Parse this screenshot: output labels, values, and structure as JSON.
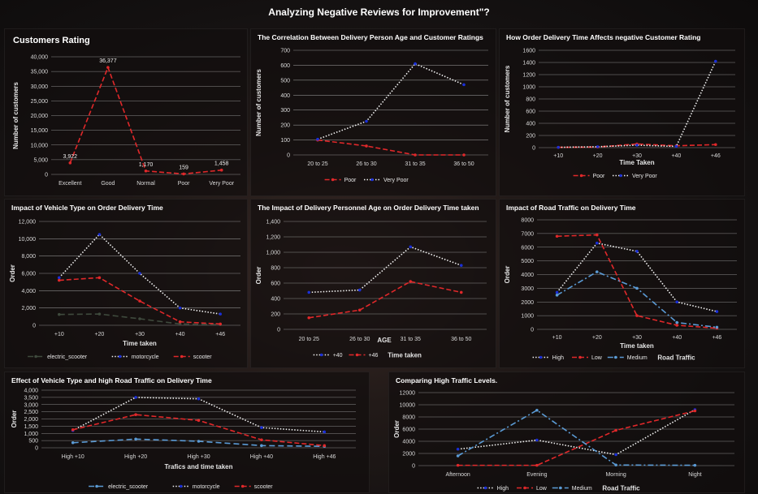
{
  "dashboard_title": "Analyzing Negative Reviews for Improvement\"?",
  "colors": {
    "red": "#e0282a",
    "white": "#f2f2f2",
    "blue": "#5b9bd5",
    "darkgreen": "#3f4a3d",
    "navy": "#1a2fd8"
  },
  "charts": [
    {
      "id": "c1",
      "type": "line",
      "title": "Customers Rating",
      "ylabel": "Number of customers",
      "xlabel": "",
      "categories": [
        "Excellent",
        "Good",
        "Normal",
        "Poor",
        "Very Poor"
      ],
      "ylim": [
        0,
        40000
      ],
      "yticks": [
        "0",
        "5,000",
        "10,000",
        "15,000",
        "20,000",
        "25,000",
        "30,000",
        "35,000",
        "40,000"
      ],
      "series": [
        {
          "values": [
            3922,
            36377,
            1170,
            159,
            1458
          ],
          "color": "#e0282a",
          "dash": "6,3",
          "marker_color": "#e0282a",
          "labels": [
            "3,922",
            "36,377",
            "1,170",
            "159",
            "1,458"
          ]
        }
      ],
      "legend": [],
      "legend_title": ""
    },
    {
      "id": "c2",
      "type": "line",
      "title": "The Correlation Between Delivery Person Age and Customer Ratings",
      "ylabel": "Number of customers",
      "xlabel": "",
      "categories": [
        "20 to 25",
        "26 to 30",
        "31 to 35",
        "36 to 50"
      ],
      "ylim": [
        0,
        700
      ],
      "yticks": [
        "0",
        "100",
        "200",
        "300",
        "400",
        "500",
        "600",
        "700"
      ],
      "series": [
        {
          "name": "Poor",
          "values": [
            100,
            60,
            0,
            0
          ],
          "color": "#e0282a",
          "dash": "6,3",
          "marker_color": "#e0282a"
        },
        {
          "name": "Very Poor",
          "values": [
            105,
            225,
            610,
            470
          ],
          "color": "#f2f2f2",
          "dash": "1.5,2",
          "marker_color": "#1a2fd8"
        }
      ],
      "legend": [
        "Poor",
        "Very Poor"
      ],
      "legend_title": ""
    },
    {
      "id": "c3",
      "type": "line",
      "title": "How Order Delivery Time Affects negative Customer Rating",
      "ylabel": "Number of customers",
      "xlabel": "Time Taken",
      "categories": [
        "+10",
        "+20",
        "+30",
        "+40",
        "+46"
      ],
      "ylim": [
        0,
        1600
      ],
      "yticks": [
        "0",
        "200",
        "400",
        "600",
        "800",
        "1000",
        "1200",
        "1400",
        "1600"
      ],
      "series": [
        {
          "name": "Poor",
          "values": [
            5,
            10,
            60,
            30,
            50
          ],
          "color": "#e0282a",
          "dash": "6,3",
          "marker_color": "#e0282a"
        },
        {
          "name": "Very Poor",
          "values": [
            5,
            15,
            40,
            20,
            1420
          ],
          "color": "#f2f2f2",
          "dash": "1.5,2",
          "marker_color": "#1a2fd8"
        }
      ],
      "legend": [
        "Poor",
        "Very Poor"
      ],
      "legend_title": ""
    },
    {
      "id": "c4",
      "type": "line",
      "title": "Impact of Vehicle Type on Order Delivery Time",
      "ylabel": "Order",
      "xlabel": "Time taken",
      "categories": [
        "+10",
        "+20",
        "+30",
        "+40",
        "+46"
      ],
      "ylim": [
        0,
        12000
      ],
      "yticks": [
        "0",
        "2,000",
        "4,000",
        "6,000",
        "8,000",
        "10,000",
        "12,000"
      ],
      "series": [
        {
          "name": "electric_scooter",
          "values": [
            1250,
            1300,
            750,
            150,
            80
          ],
          "color": "#3f4a3d",
          "dash": "7,4",
          "marker_color": "#3f4a3d"
        },
        {
          "name": "motorcycle",
          "values": [
            5500,
            10500,
            6000,
            2000,
            1300
          ],
          "color": "#f2f2f2",
          "dash": "1.5,2",
          "marker_color": "#1a2fd8"
        },
        {
          "name": "scooter",
          "values": [
            5200,
            5500,
            2800,
            400,
            150
          ],
          "color": "#e0282a",
          "dash": "6,3",
          "marker_color": "#e0282a"
        }
      ],
      "legend": [
        "electric_scooter",
        "motorcycle",
        "scooter"
      ],
      "legend_title": ""
    },
    {
      "id": "c5",
      "type": "line",
      "title": "The Impact of Delivery Personnel Age on Order Delivery Time taken",
      "ylabel": "Order",
      "xlabel": "AGE",
      "categories": [
        "20 to 25",
        "26 to 30",
        "31 to 35",
        "36 to 50"
      ],
      "ylim": [
        0,
        1400
      ],
      "yticks": [
        "0",
        "200",
        "400",
        "600",
        "800",
        "1,000",
        "1,200",
        "1,400"
      ],
      "series": [
        {
          "name": "+40",
          "values": [
            480,
            510,
            1070,
            830
          ],
          "color": "#f2f2f2",
          "dash": "1.5,2",
          "marker_color": "#1a2fd8"
        },
        {
          "name": "+46",
          "values": [
            150,
            250,
            620,
            480
          ],
          "color": "#e0282a",
          "dash": "6,3",
          "marker_color": "#e0282a"
        }
      ],
      "legend": [
        "+40",
        "+46"
      ],
      "legend_title": "Time taken"
    },
    {
      "id": "c6",
      "type": "line",
      "title": "Impact of Road Traffic on Delivery Time",
      "ylabel": "Order",
      "xlabel": "Time taken",
      "categories": [
        "+10",
        "+20",
        "+30",
        "+40",
        "+46"
      ],
      "ylim": [
        0,
        8000
      ],
      "yticks": [
        "0",
        "1000",
        "2000",
        "3000",
        "4000",
        "5000",
        "6000",
        "7000",
        "8000"
      ],
      "series": [
        {
          "name": "High",
          "values": [
            2700,
            6300,
            5700,
            2000,
            1300
          ],
          "color": "#f2f2f2",
          "dash": "1.5,2",
          "marker_color": "#1a2fd8"
        },
        {
          "name": "Low",
          "values": [
            6800,
            6900,
            1000,
            300,
            80
          ],
          "color": "#e0282a",
          "dash": "6,3",
          "marker_color": "#e0282a"
        },
        {
          "name": "Medium",
          "values": [
            2500,
            4200,
            3000,
            500,
            150
          ],
          "color": "#5b9bd5",
          "dash": "7,3,2,3",
          "marker_color": "#5b9bd5"
        }
      ],
      "legend": [
        "High",
        "Low",
        "Medium"
      ],
      "legend_title": "Road Traffic"
    },
    {
      "id": "c7",
      "type": "line",
      "title": "Effect of Vehicle Type and  high Road Traffic on Delivery Time",
      "ylabel": "Order",
      "xlabel": "Trafics and time taken",
      "categories": [
        "High +10",
        "High +20",
        "High +30",
        "High +40",
        "High +46"
      ],
      "ylim": [
        0,
        4000
      ],
      "yticks": [
        "0",
        "500",
        "1,000",
        "1,500",
        "2,000",
        "2,500",
        "3,000",
        "3,500",
        "4,000"
      ],
      "series": [
        {
          "name": "electric_scooter",
          "values": [
            350,
            600,
            450,
            150,
            100
          ],
          "color": "#5b9bd5",
          "dash": "7,4",
          "marker_color": "#5b9bd5"
        },
        {
          "name": "motorcycle",
          "values": [
            1200,
            3500,
            3400,
            1400,
            1100
          ],
          "color": "#f2f2f2",
          "dash": "1.5,2",
          "marker_color": "#1a2fd8"
        },
        {
          "name": "scooter",
          "values": [
            1250,
            2300,
            1900,
            550,
            150
          ],
          "color": "#e0282a",
          "dash": "6,3",
          "marker_color": "#e0282a"
        }
      ],
      "legend": [
        "electric_scooter",
        "motorcycle",
        "scooter"
      ],
      "legend_title": ""
    },
    {
      "id": "c8",
      "type": "line",
      "title": "Comparing High Traffic Levels.",
      "ylabel": "Order",
      "xlabel": "",
      "categories": [
        "Afternoon",
        "Evening",
        "Morning",
        "Night"
      ],
      "ylim": [
        0,
        12000
      ],
      "yticks": [
        "0",
        "2000",
        "4000",
        "6000",
        "8000",
        "10000",
        "12000"
      ],
      "series": [
        {
          "name": "High",
          "values": [
            2700,
            4200,
            1800,
            9200
          ],
          "color": "#f2f2f2",
          "dash": "1.5,2",
          "marker_color": "#1a2fd8"
        },
        {
          "name": "Low",
          "values": [
            50,
            50,
            5800,
            9000
          ],
          "color": "#e0282a",
          "dash": "6,3",
          "marker_color": "#e0282a"
        },
        {
          "name": "Medium",
          "values": [
            1600,
            9100,
            100,
            50
          ],
          "color": "#5b9bd5",
          "dash": "7,3,2,3",
          "marker_color": "#5b9bd5"
        }
      ],
      "legend": [
        "High",
        "Low",
        "Medium"
      ],
      "legend_title": "Road Traffic"
    }
  ]
}
